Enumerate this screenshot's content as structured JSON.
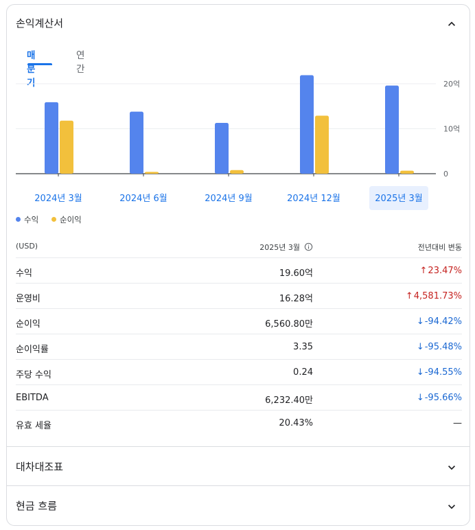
{
  "income": {
    "title": "손익계산서",
    "tabs": [
      {
        "label": "매분기",
        "active": true
      },
      {
        "label": "연간",
        "active": false
      }
    ],
    "legend": [
      {
        "label": "수익",
        "color": "#5484ed"
      },
      {
        "label": "순이익",
        "color": "#f2c03c"
      }
    ],
    "table": {
      "header": {
        "unit": "(USD)",
        "period": "2025년 3월",
        "change": "전년대비 변동"
      },
      "rows": [
        {
          "label": "수익",
          "value": "19.60억",
          "change": "23.47%",
          "direction": "up"
        },
        {
          "label": "운영비",
          "value": "16.28억",
          "change": "4,581.73%",
          "direction": "up"
        },
        {
          "label": "순이익",
          "value": "6,560.80만",
          "change": "-94.42%",
          "direction": "down"
        },
        {
          "label": "순이익률",
          "value": "3.35",
          "change": "-95.48%",
          "direction": "down"
        },
        {
          "label": "주당 수익",
          "value": "0.24",
          "change": "-94.55%",
          "direction": "down"
        },
        {
          "label": "EBITDA",
          "value": "6,232.40만",
          "change": "-95.66%",
          "direction": "down"
        },
        {
          "label": "유효 세율",
          "value": "20.43%",
          "change": "—",
          "direction": "flat"
        }
      ]
    }
  },
  "balance_sheet": {
    "title": "대차대조표"
  },
  "cash_flow": {
    "title": "현금 흐름"
  },
  "chart_data": {
    "type": "bar",
    "categories": [
      "2024년 3월",
      "2024년 6월",
      "2024년 9월",
      "2024년 12월",
      "2025년 3월"
    ],
    "selected_index": 4,
    "series": [
      {
        "name": "수익",
        "color": "#5484ed",
        "values": [
          15.9,
          13.8,
          11.3,
          21.9,
          19.6
        ]
      },
      {
        "name": "순이익",
        "color": "#f2c03c",
        "values": [
          11.8,
          0.4,
          0.8,
          12.9,
          0.66
        ]
      }
    ],
    "yticks": [
      {
        "value": 0,
        "label": "0"
      },
      {
        "value": 10,
        "label": "10억"
      },
      {
        "value": 20,
        "label": "20억"
      }
    ],
    "ylim": [
      0,
      20
    ],
    "ylabel_unit": "억",
    "grid": true
  }
}
